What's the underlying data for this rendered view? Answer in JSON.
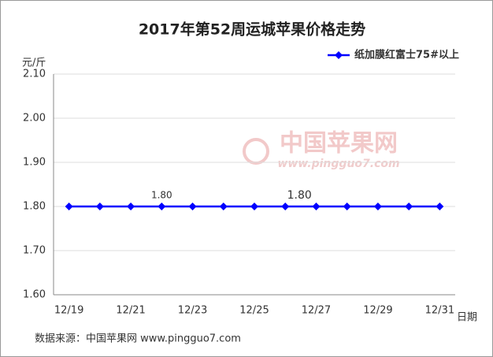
{
  "chart_data": {
    "type": "line",
    "title": "2017年第52周运城苹果价格走势",
    "y_unit": "元/斤",
    "x_unit": "日期",
    "source": "数据来源：中国苹果网 www.pingguo7.com",
    "watermark": "中国苹果网",
    "watermark_url": "www.pingguo7.com",
    "categories": [
      "12/19",
      null,
      "12/21",
      null,
      "12/23",
      null,
      "12/25",
      null,
      "12/27",
      null,
      "12/29",
      null,
      "12/31"
    ],
    "series": [
      {
        "name": "纸加膜红富士75#以上",
        "color": "#0000ff",
        "values": [
          1.8,
          1.8,
          1.8,
          1.8,
          1.8,
          1.8,
          1.8,
          1.8,
          1.8,
          1.8,
          1.8,
          1.8,
          1.8
        ],
        "value_labels": [
          null,
          null,
          null,
          "1.80",
          null,
          null,
          null,
          "1.80",
          null,
          null,
          null,
          null,
          null
        ]
      }
    ],
    "ylim": [
      1.6,
      2.1
    ],
    "yticks": [
      {
        "value": 1.6,
        "label": "1.60"
      },
      {
        "value": 1.7,
        "label": "1.70"
      },
      {
        "value": 1.8,
        "label": "1.80"
      },
      {
        "value": 1.9,
        "label": "1.90"
      },
      {
        "value": 2.0,
        "label": "2.00"
      },
      {
        "value": 2.1,
        "label": "2.10"
      }
    ],
    "grid": true,
    "legend": "top-right"
  }
}
